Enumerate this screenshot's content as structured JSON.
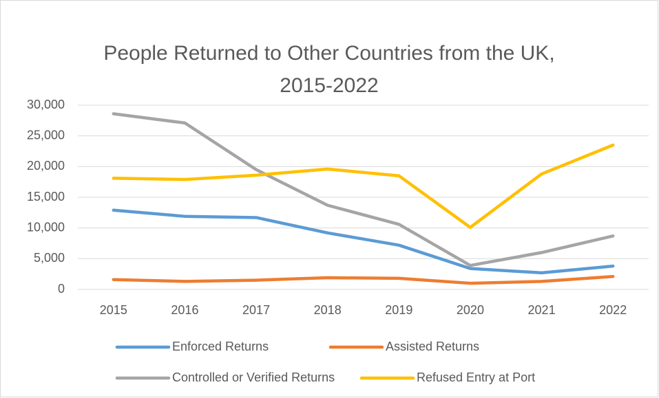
{
  "chart_data": {
    "type": "line",
    "title": "People Returned to Other Countries from the UK, 2015-2022",
    "categories": [
      "2015",
      "2016",
      "2017",
      "2018",
      "2019",
      "2020",
      "2021",
      "2022"
    ],
    "series": [
      {
        "name": "Enforced Returns",
        "color": "#5b9bd5",
        "values": [
          12900,
          11900,
          11700,
          9200,
          7200,
          3400,
          2700,
          3800
        ]
      },
      {
        "name": "Assisted Returns",
        "color": "#ed7d31",
        "values": [
          1600,
          1300,
          1500,
          1900,
          1800,
          1000,
          1300,
          2100
        ]
      },
      {
        "name": "Controlled or Verified Returns",
        "color": "#a5a5a5",
        "values": [
          28600,
          27100,
          19500,
          13700,
          10600,
          3900,
          6000,
          8700
        ]
      },
      {
        "name": "Refused Entry at Port",
        "color": "#ffc000",
        "values": [
          18100,
          17900,
          18600,
          19600,
          18500,
          10100,
          18800,
          23500
        ]
      }
    ],
    "ylim": [
      0,
      30000
    ],
    "yticks": [
      0,
      {
        "value": 5000,
        "label": "5,000"
      },
      {
        "value": 10000,
        "label": "10,000"
      },
      {
        "value": 15000,
        "label": "15,000"
      },
      {
        "value": 20000,
        "label": "20,000"
      },
      {
        "value": 25000,
        "label": "25,000"
      },
      {
        "value": 30000,
        "label": "30,000"
      }
    ],
    "grid": true,
    "legend": "bottom"
  }
}
